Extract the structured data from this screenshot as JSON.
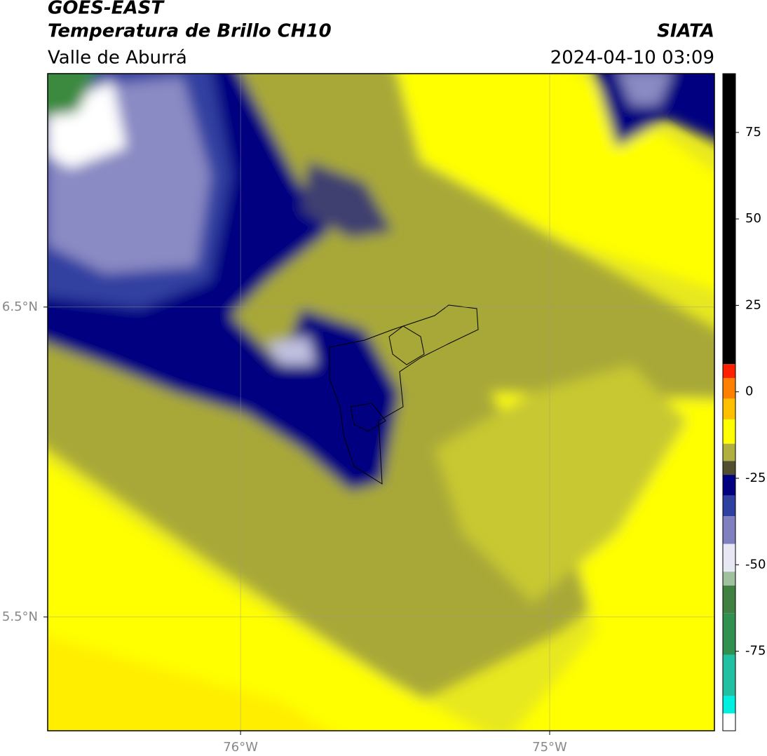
{
  "header": {
    "title": "GOES-EAST",
    "subtitle": "Temperatura de Brillo CH10",
    "source": "SIATA",
    "region": "Valle de Aburrá",
    "datetime": "2024-04-10 03:09"
  },
  "map": {
    "xlim": [
      -76.624,
      -74.467
    ],
    "ylim": [
      5.133,
      7.253
    ],
    "xticks": [
      {
        "value": -76,
        "label": "76°W"
      },
      {
        "value": -75,
        "label": "75°W"
      }
    ],
    "yticks": [
      {
        "value": 6.5,
        "label": "6.5°N"
      },
      {
        "value": 5.5,
        "label": "5.5°N"
      }
    ],
    "grid": true
  },
  "colorbar": {
    "lim": [
      -98,
      92
    ],
    "ticks": [
      75,
      50,
      25,
      0,
      -25,
      -50,
      -75
    ],
    "segments": [
      {
        "min": 8,
        "max": 92,
        "color": "#000000"
      },
      {
        "min": 4,
        "max": 8,
        "color": "#ff2000"
      },
      {
        "min": -2,
        "max": 4,
        "color": "#ff8000"
      },
      {
        "min": -8,
        "max": -2,
        "color": "#ffc000"
      },
      {
        "min": -15,
        "max": -8,
        "color": "#ffff00"
      },
      {
        "min": -20,
        "max": -15,
        "color": "#b0b040"
      },
      {
        "min": -24,
        "max": -20,
        "color": "#505030"
      },
      {
        "min": -30,
        "max": -24,
        "color": "#000080"
      },
      {
        "min": -36,
        "max": -30,
        "color": "#3040a0"
      },
      {
        "min": -44,
        "max": -36,
        "color": "#8080c0"
      },
      {
        "min": -52,
        "max": -44,
        "color": "#e8e8f4"
      },
      {
        "min": -56,
        "max": -52,
        "color": "#a0c0a0"
      },
      {
        "min": -64,
        "max": -56,
        "color": "#408040"
      },
      {
        "min": -76,
        "max": -64,
        "color": "#309050"
      },
      {
        "min": -88,
        "max": -76,
        "color": "#20c0a0"
      },
      {
        "min": -93,
        "max": -88,
        "color": "#00f0e0"
      },
      {
        "min": -98,
        "max": -93,
        "color": "#ffffff"
      }
    ]
  }
}
